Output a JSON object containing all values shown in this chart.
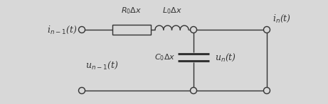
{
  "bg_color": "#d8d8d8",
  "line_color": "#333333",
  "fig_width": 4.61,
  "fig_height": 1.47,
  "dpi": 100,
  "label_in_minus1": "i$_{n-1}$(t)",
  "label_in": "i$_n$(t)",
  "label_un_minus1": "u$_{n-1}$(t)",
  "label_un": "u$_n$(t)",
  "label_R": "$R_0\\Delta x$",
  "label_L": "$L_0\\Delta x$",
  "label_C": "$C_0\\Delta x$",
  "fontsize": 9
}
